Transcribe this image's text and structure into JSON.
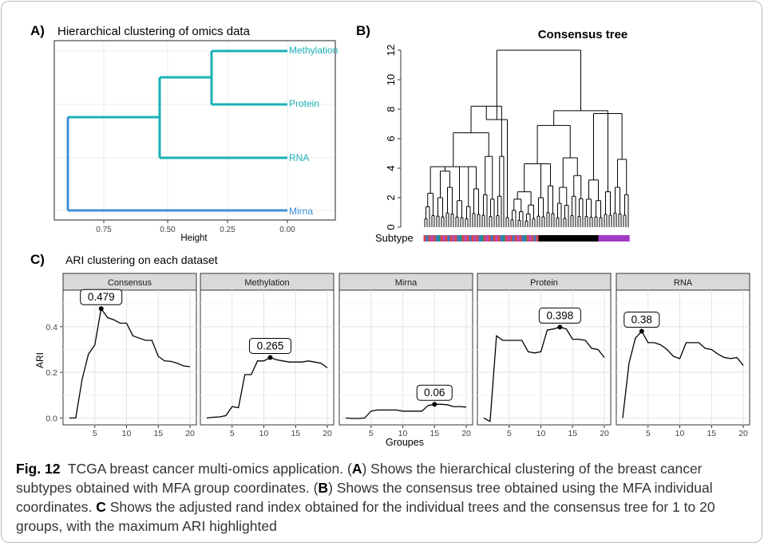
{
  "panel_a": {
    "tag": "A)",
    "title": "Hierarchical clustering of omics data",
    "xlabel": "Height",
    "xticks": [
      "0.75",
      "0.50",
      "0.25",
      "0.00"
    ],
    "leaves": [
      "Methylation",
      "Protein",
      "RNA",
      "Mirna"
    ]
  },
  "panel_b": {
    "tag": "B)",
    "title": "Consensus tree",
    "yticks": [
      "0",
      "2",
      "4",
      "6",
      "8",
      "10",
      "12"
    ],
    "subtype_label": "Subtype"
  },
  "panel_c": {
    "tag": "C)",
    "title": "ARI clustering on each dataset",
    "ylabel": "ARI",
    "xlabel": "Groupes",
    "yticks": [
      "0.0",
      "0.2",
      "0.4"
    ],
    "xticks": [
      "5",
      "10",
      "15",
      "20"
    ]
  },
  "caption": {
    "fig_label": "Fig. 12",
    "lead": "TCGA breast cancer multi-omics application. (",
    "a": "A",
    "after_a": ") Shows the hierarchical clustering of the breast cancer subtypes obtained with MFA group coordinates. (",
    "b": "B",
    "after_b": ") Shows the consensus tree obtained using the MFA individual coordinates. ",
    "c": "C",
    "after_c": " Shows the adjusted rand index obtained for the individual trees and the consensus tree for 1 to 20 groups, with the maximum ARI highlighted"
  },
  "chart_data": [
    {
      "type": "line",
      "title": "ARI clustering on each dataset",
      "xlabel": "Groupes",
      "ylabel": "ARI",
      "ylim": [
        -0.03,
        0.56
      ],
      "xlim": [
        0,
        21
      ],
      "x": [
        1,
        2,
        3,
        4,
        5,
        6,
        7,
        8,
        9,
        10,
        11,
        12,
        13,
        14,
        15,
        16,
        17,
        18,
        19,
        20
      ],
      "series": [
        {
          "name": "Consensus",
          "values": [
            0.0,
            0.0,
            0.17,
            0.28,
            0.32,
            0.479,
            0.44,
            0.43,
            0.415,
            0.415,
            0.36,
            0.35,
            0.34,
            0.34,
            0.27,
            0.25,
            0.248,
            0.24,
            0.228,
            0.225
          ],
          "max_label": "0.479",
          "max_x": 6
        },
        {
          "name": "Methylation",
          "values": [
            0.0,
            0.003,
            0.005,
            0.01,
            0.05,
            0.045,
            0.19,
            0.19,
            0.25,
            0.25,
            0.265,
            0.255,
            0.25,
            0.245,
            0.245,
            0.245,
            0.25,
            0.245,
            0.24,
            0.22
          ],
          "max_label": "0.265",
          "max_x": 11
        },
        {
          "name": "Mirna",
          "values": [
            0.0,
            -0.002,
            -0.002,
            0.0,
            0.03,
            0.035,
            0.035,
            0.035,
            0.035,
            0.03,
            0.03,
            0.03,
            0.03,
            0.055,
            0.06,
            0.06,
            0.058,
            0.05,
            0.05,
            0.048
          ],
          "max_label": "0.06",
          "max_x": 15
        },
        {
          "name": "Protein",
          "values": [
            0.0,
            -0.015,
            0.36,
            0.34,
            0.34,
            0.34,
            0.34,
            0.29,
            0.285,
            0.29,
            0.385,
            0.39,
            0.398,
            0.39,
            0.345,
            0.345,
            0.34,
            0.305,
            0.3,
            0.265
          ],
          "max_label": "0.398",
          "max_x": 13
        },
        {
          "name": "RNA",
          "values": [
            0.0,
            0.24,
            0.35,
            0.38,
            0.33,
            0.33,
            0.32,
            0.3,
            0.27,
            0.26,
            0.33,
            0.33,
            0.33,
            0.305,
            0.3,
            0.28,
            0.265,
            0.26,
            0.265,
            0.23
          ],
          "max_label": "0.38",
          "max_x": 4
        }
      ]
    }
  ]
}
